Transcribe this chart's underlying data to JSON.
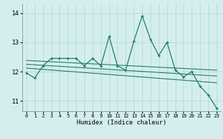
{
  "title": "",
  "xlabel": "Humidex (Indice chaleur)",
  "bg_color": "#d4eeee",
  "grid_color": "#b0d4d4",
  "line_color": "#1a7a6a",
  "xlim": [
    -0.5,
    23.5
  ],
  "ylim": [
    10.65,
    14.3
  ],
  "yticks": [
    11,
    12,
    13,
    14
  ],
  "xticks": [
    0,
    1,
    2,
    3,
    4,
    5,
    6,
    7,
    8,
    9,
    10,
    11,
    12,
    13,
    14,
    15,
    16,
    17,
    18,
    19,
    20,
    21,
    22,
    23
  ],
  "series": [
    [
      0,
      11.95
    ],
    [
      1,
      11.78
    ],
    [
      2,
      12.2
    ],
    [
      3,
      12.45
    ],
    [
      4,
      12.45
    ],
    [
      5,
      12.45
    ],
    [
      6,
      12.45
    ],
    [
      7,
      12.2
    ],
    [
      8,
      12.45
    ],
    [
      9,
      12.2
    ],
    [
      10,
      13.2
    ],
    [
      11,
      12.2
    ],
    [
      12,
      12.05
    ],
    [
      13,
      13.05
    ],
    [
      14,
      13.9
    ],
    [
      15,
      13.1
    ],
    [
      16,
      12.55
    ],
    [
      17,
      13.0
    ],
    [
      18,
      12.05
    ],
    [
      19,
      11.82
    ],
    [
      20,
      12.0
    ],
    [
      21,
      11.5
    ],
    [
      22,
      11.2
    ],
    [
      23,
      10.75
    ]
  ],
  "trend_lines": [
    [
      [
        0,
        12.38
      ],
      [
        23,
        12.05
      ]
    ],
    [
      [
        0,
        12.25
      ],
      [
        23,
        11.85
      ]
    ],
    [
      [
        0,
        12.12
      ],
      [
        23,
        11.62
      ]
    ]
  ]
}
